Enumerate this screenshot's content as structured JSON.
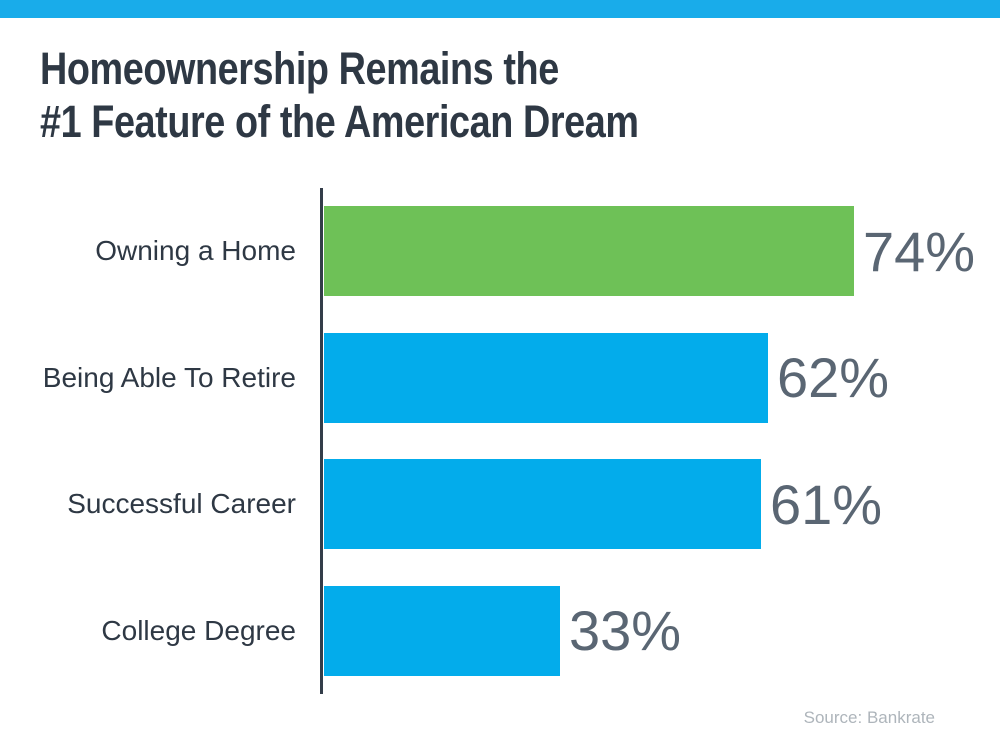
{
  "page": {
    "background": "#ffffff",
    "top_strip_color": "#19ACEA"
  },
  "header": {
    "title_line1": "Homeownership Remains the",
    "title_line2": "#1 Feature of the American Dream",
    "title_color": "#2E3844"
  },
  "chart_data": {
    "type": "bar",
    "orientation": "horizontal",
    "title": "Homeownership Remains the #1 Feature of the American Dream",
    "categories": [
      "Owning a Home",
      "Being Able To Retire",
      "Successful Career",
      "College Degree"
    ],
    "values": [
      74,
      62,
      61,
      33
    ],
    "value_labels": [
      "74%",
      "62%",
      "61%",
      "33%"
    ],
    "bar_colors": [
      "#6EC157",
      "#03ACEB",
      "#03ACEB",
      "#03ACEB"
    ],
    "category_label_color": "#2E3844",
    "value_label_color": "#5A6673",
    "axis_color": "#333D49",
    "xlim": [
      0,
      100
    ],
    "grid": false,
    "legend": false
  },
  "footer": {
    "source": "Source: Bankrate",
    "source_color": "#AEB5BB"
  }
}
